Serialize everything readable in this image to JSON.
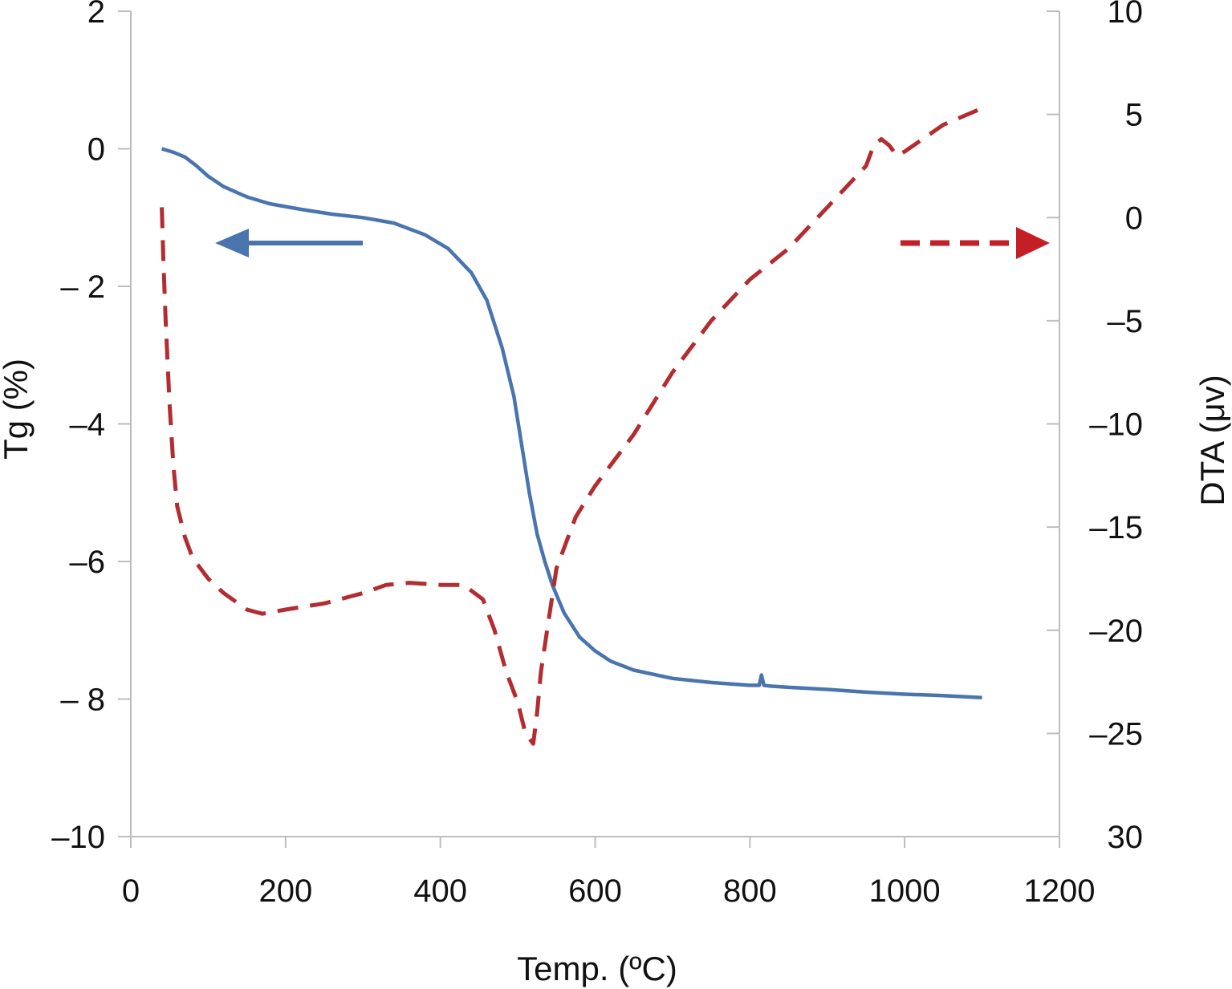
{
  "chart_data": {
    "type": "line",
    "title": "",
    "xlabel": "Temp. (ºC)",
    "ylabel_left": "Tg (%)",
    "ylabel_right": "DTA (μv)",
    "xlim": [
      0,
      1200
    ],
    "ylim_left": [
      -10,
      2
    ],
    "ylim_right": [
      -30,
      10
    ],
    "grid": false,
    "x_ticks": [
      "0",
      "200",
      "400",
      "600",
      "800",
      "1000",
      "1200"
    ],
    "y_left_ticks": [
      "2",
      "0",
      "– 2",
      "–4",
      "–6",
      "– 8",
      "–10"
    ],
    "y_right_ticks": [
      "10",
      "5",
      "0",
      "–5",
      "–10",
      "–15",
      "–20",
      "–25",
      "30"
    ],
    "colors": {
      "tg": "#4a74ad",
      "dta": "#b32c30",
      "dta_arrow": "#c41e26",
      "axis": "#bdbdbd"
    },
    "series": [
      {
        "axis": "left",
        "style": "solid",
        "x": [
          40,
          55,
          70,
          85,
          100,
          120,
          150,
          180,
          220,
          260,
          300,
          340,
          380,
          410,
          440,
          460,
          480,
          495,
          505,
          515,
          525,
          535,
          545,
          560,
          580,
          600,
          620,
          650,
          700,
          750,
          800,
          812,
          815,
          818,
          825,
          850,
          900,
          950,
          1000,
          1050,
          1100
        ],
        "y": [
          0.0,
          -0.05,
          -0.12,
          -0.25,
          -0.4,
          -0.55,
          -0.7,
          -0.8,
          -0.88,
          -0.95,
          -1.0,
          -1.08,
          -1.25,
          -1.45,
          -1.8,
          -2.2,
          -2.9,
          -3.6,
          -4.3,
          -5.0,
          -5.6,
          -6.0,
          -6.35,
          -6.75,
          -7.1,
          -7.3,
          -7.45,
          -7.58,
          -7.7,
          -7.76,
          -7.8,
          -7.8,
          -7.65,
          -7.8,
          -7.81,
          -7.83,
          -7.86,
          -7.9,
          -7.93,
          -7.95,
          -7.98
        ]
      },
      {
        "axis": "right",
        "style": "dashed",
        "x": [
          40,
          42,
          45,
          50,
          55,
          60,
          70,
          80,
          90,
          100,
          120,
          150,
          170,
          200,
          250,
          300,
          330,
          360,
          400,
          430,
          455,
          470,
          485,
          500,
          510,
          520,
          525,
          530,
          540,
          550,
          560,
          575,
          600,
          650,
          700,
          750,
          800,
          850,
          900,
          950,
          960,
          970,
          980,
          990,
          1000,
          1050,
          1100
        ],
        "y": [
          0.5,
          -2.0,
          -5.0,
          -9.0,
          -12.0,
          -14.0,
          -15.5,
          -16.5,
          -17.0,
          -17.5,
          -18.2,
          -19.0,
          -19.2,
          -19.0,
          -18.7,
          -18.2,
          -17.8,
          -17.7,
          -17.8,
          -17.8,
          -18.5,
          -20.0,
          -22.0,
          -23.5,
          -25.0,
          -25.5,
          -24.0,
          -22.0,
          -19.5,
          -17.0,
          -16.0,
          -14.5,
          -13.0,
          -10.5,
          -7.5,
          -5.0,
          -3.0,
          -1.5,
          0.5,
          2.5,
          3.5,
          3.8,
          3.5,
          3.0,
          3.2,
          4.5,
          5.3
        ]
      }
    ]
  }
}
